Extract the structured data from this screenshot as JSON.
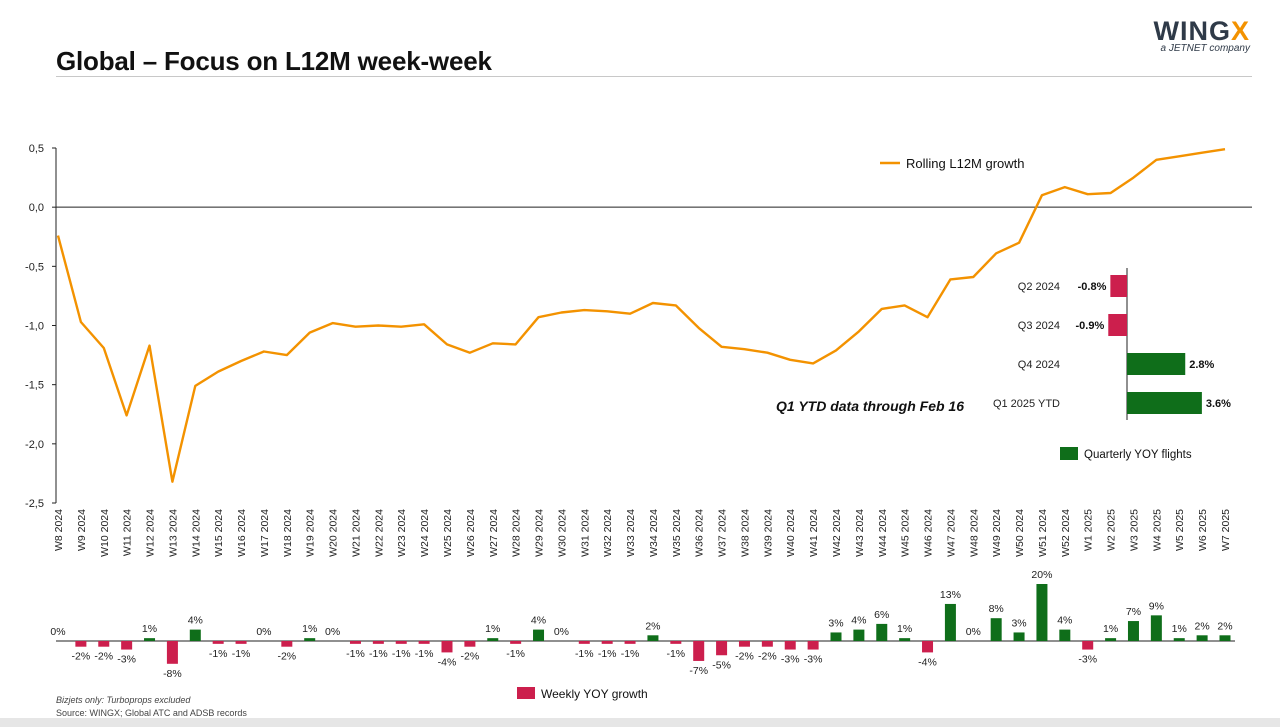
{
  "header": {
    "title": "Global – Focus on L12M week-week",
    "logo_main": "WING",
    "logo_x": "X",
    "logo_sub": "a JETNET company"
  },
  "footer": {
    "note": "Bizjets only: Turboprops excluded",
    "source": "Source: WINGX; Global ATC and ADSB records"
  },
  "colors": {
    "line": "#f39200",
    "negative": "#cc1f4d",
    "positive": "#0f6e1a",
    "axis": "#222222"
  },
  "chart_data": [
    {
      "type": "line",
      "name": "rolling-l12m",
      "series": [
        {
          "name": "Rolling L12M growth",
          "values": [
            -0.24,
            -0.97,
            -1.19,
            -1.76,
            -1.17,
            -2.32,
            -1.51,
            -1.39,
            -1.3,
            -1.22,
            -1.25,
            -1.06,
            -0.98,
            -1.01,
            -1.0,
            -1.01,
            -0.99,
            -1.16,
            -1.23,
            -1.15,
            -1.16,
            -0.93,
            -0.89,
            -0.87,
            -0.88,
            -0.9,
            -0.81,
            -0.83,
            -1.02,
            -1.18,
            -1.2,
            -1.23,
            -1.29,
            -1.32,
            -1.21,
            -1.05,
            -0.86,
            -0.83,
            -0.93,
            -0.61,
            -0.59,
            -0.39,
            -0.3,
            0.1,
            0.17,
            0.11,
            0.12,
            0.25,
            0.4,
            0.43,
            0.46,
            0.49
          ]
        }
      ],
      "categories": [
        "W8 2024",
        "W9 2024",
        "W10 2024",
        "W11 2024",
        "W12 2024",
        "W13 2024",
        "W14 2024",
        "W15 2024",
        "W16 2024",
        "W17 2024",
        "W18 2024",
        "W19 2024",
        "W20 2024",
        "W21 2024",
        "W22 2024",
        "W23 2024",
        "W24 2024",
        "W25 2024",
        "W26 2024",
        "W27 2024",
        "W28 2024",
        "W29 2024",
        "W30 2024",
        "W31 2024",
        "W32 2024",
        "W33 2024",
        "W34 2024",
        "W35 2024",
        "W36 2024",
        "W37 2024",
        "W38 2024",
        "W39 2024",
        "W40 2024",
        "W41 2024",
        "W42 2024",
        "W43 2024",
        "W44 2024",
        "W45 2024",
        "W46 2024",
        "W47 2024",
        "W48 2024",
        "W49 2024",
        "W50 2024",
        "W51 2024",
        "W52 2024",
        "W1 2025",
        "W2 2025",
        "W3 2025",
        "W4 2025",
        "W5 2025",
        "W6 2025",
        "W7 2025"
      ],
      "ylim": [
        -2.5,
        0.5
      ],
      "yticks": [
        "0,5",
        "0,0",
        "-0,5",
        "-1,0",
        "-1,5",
        "-2,0",
        "-2,5"
      ],
      "legend": "top-right",
      "grid": false
    },
    {
      "type": "bar",
      "name": "weekly-yoy",
      "series": [
        {
          "name": "Weekly YOY growth",
          "values": [
            0,
            -2,
            -2,
            -3,
            1,
            -8,
            4,
            -1,
            -1,
            0,
            -2,
            1,
            0,
            -1,
            -1,
            -1,
            -1,
            -4,
            -2,
            1,
            -1,
            4,
            0,
            -1,
            -1,
            -1,
            2,
            -1,
            -7,
            -5,
            -2,
            -2,
            -3,
            -3,
            3,
            4,
            6,
            1,
            -4,
            13,
            0,
            8,
            3,
            20,
            4,
            -3,
            1,
            7,
            9,
            1,
            2,
            2
          ]
        }
      ],
      "labels": [
        "0%",
        "-2%",
        "-2%",
        "-3%",
        "1%",
        "-8%",
        "4%",
        "-1%",
        "-1%",
        "0%",
        "-2%",
        "1%",
        "0%",
        "-1%",
        "-1%",
        "-1%",
        "-1%",
        "-4%",
        "-2%",
        "1%",
        "-1%",
        "4%",
        "0%",
        "-1%",
        "-1%",
        "-1%",
        "2%",
        "-1%",
        "-7%",
        "-5%",
        "-2%",
        "-2%",
        "-3%",
        "-3%",
        "3%",
        "4%",
        "6%",
        "1%",
        "-4%",
        "13%",
        "0%",
        "8%",
        "3%",
        "20%",
        "4%",
        "-3%",
        "1%",
        "7%",
        "9%",
        "1%",
        "2%",
        "2%"
      ],
      "unit": "%",
      "legend": "bottom-center"
    },
    {
      "type": "bar",
      "orientation": "horizontal",
      "name": "quarterly-yoy",
      "categories": [
        "Q2 2024",
        "Q3 2024",
        "Q4 2024",
        "Q1 2025 YTD"
      ],
      "values": [
        -0.8,
        -0.9,
        2.8,
        3.6
      ],
      "labels": [
        "-0.8%",
        "-0.9%",
        "2.8%",
        "3.6%"
      ],
      "series_name": "Quarterly YOY flights",
      "annotation": "Q1 YTD data through Feb 16",
      "legend": "bottom-right"
    }
  ]
}
